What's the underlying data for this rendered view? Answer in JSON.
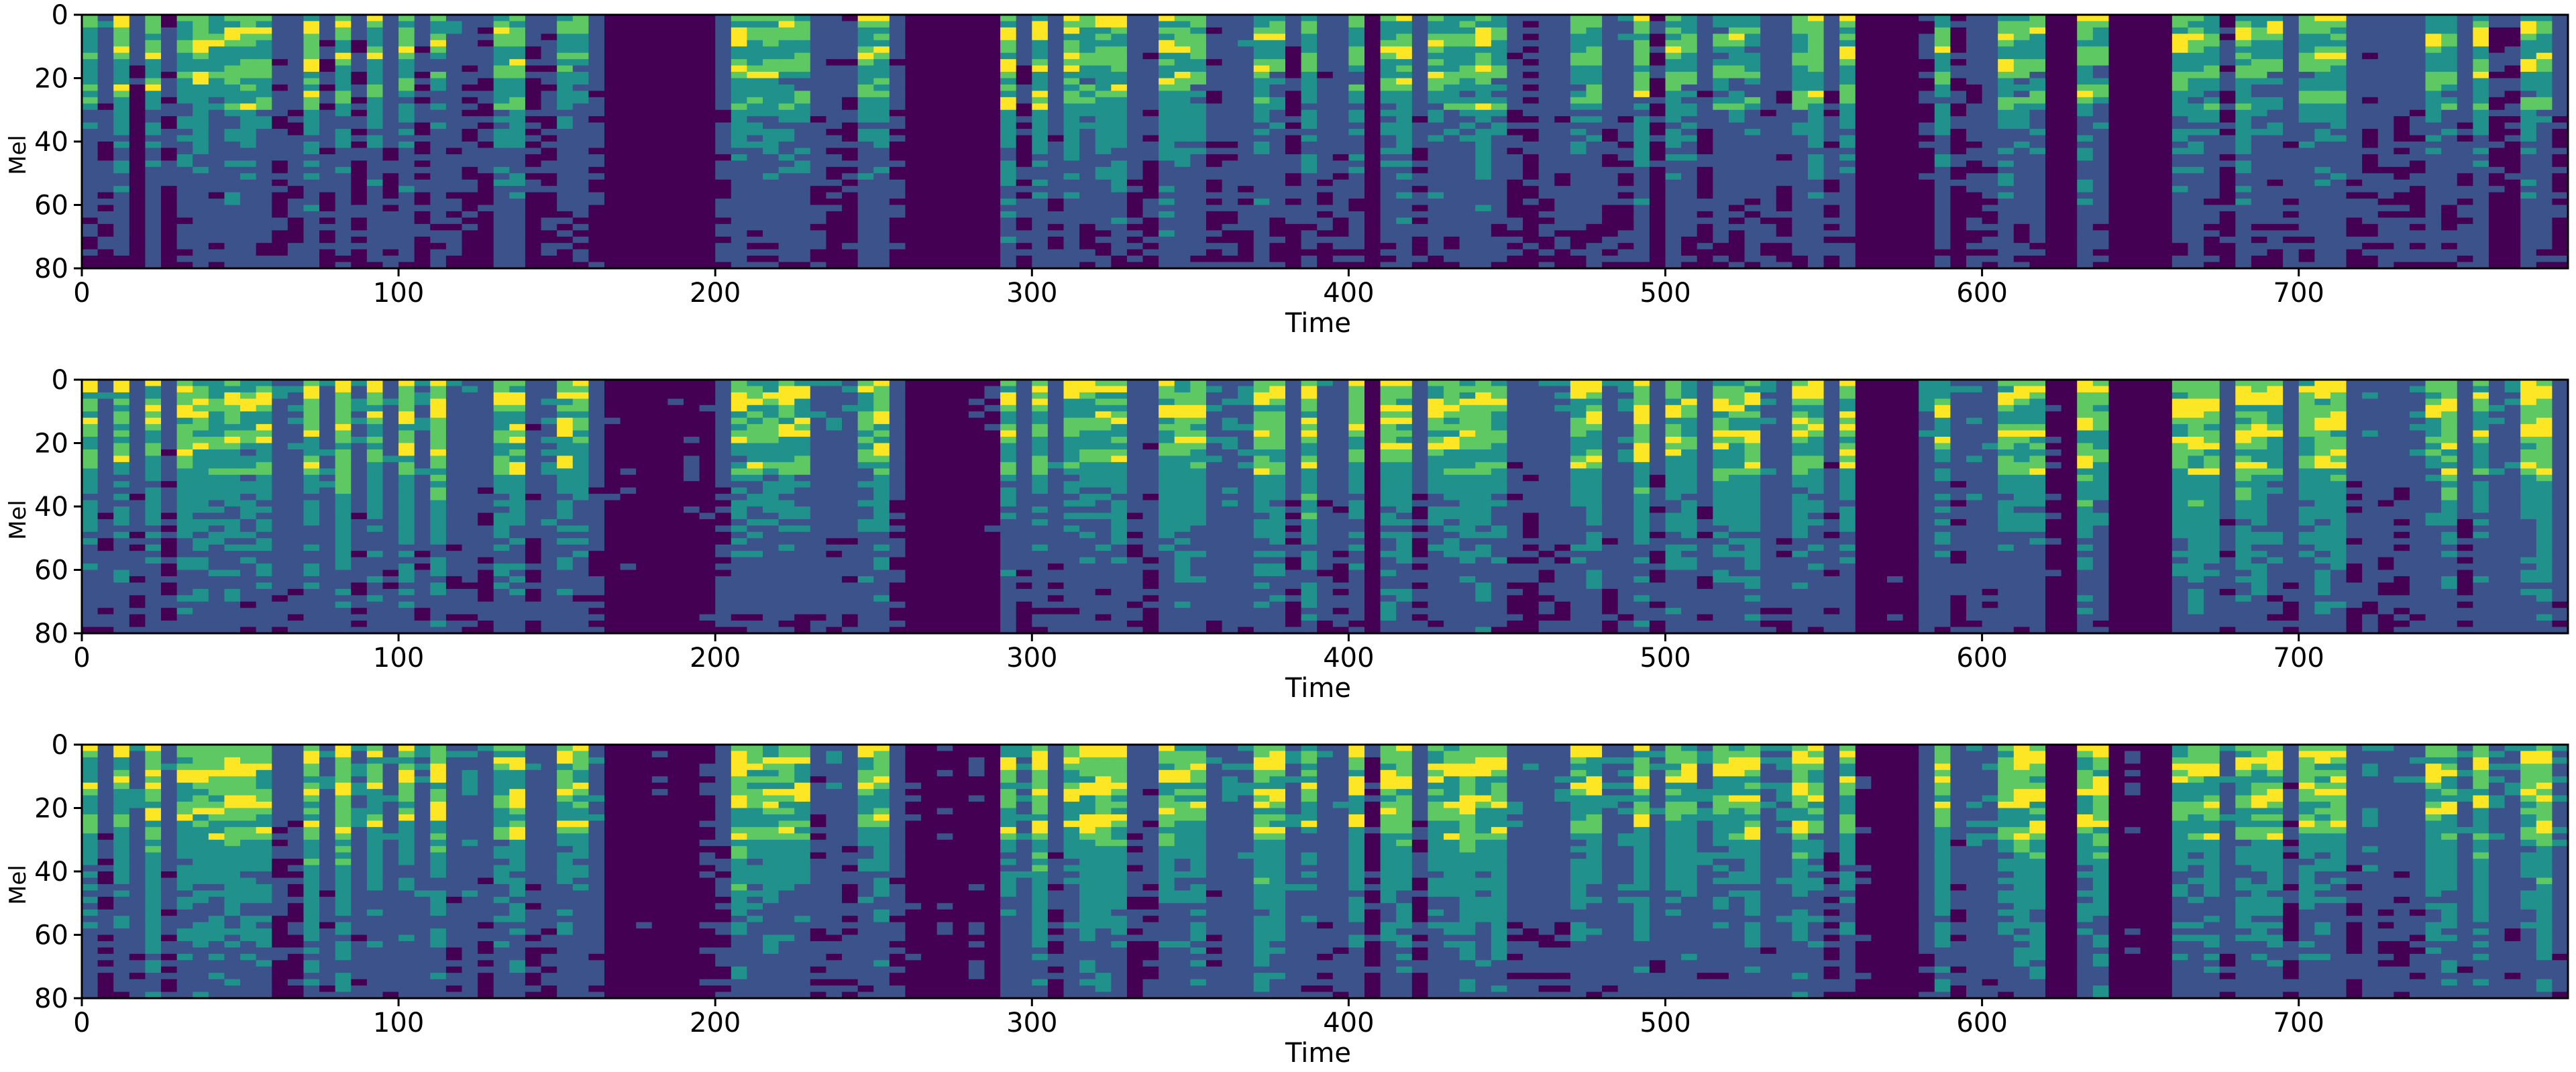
{
  "chart_data": [
    {
      "type": "heatmap",
      "xlabel": "Time",
      "ylabel": "Mel",
      "xlim": [
        0,
        785
      ],
      "ylim": [
        80,
        0
      ],
      "xticks": [
        0,
        100,
        200,
        300,
        400,
        500,
        600,
        700
      ],
      "yticks": [
        0,
        20,
        40,
        60,
        80
      ],
      "colormap": [
        "#440154",
        "#3b528b",
        "#21918c",
        "#5ec962",
        "#fde725"
      ],
      "grid": false,
      "seed": 11,
      "energy": 0.0
    },
    {
      "type": "heatmap",
      "xlabel": "Time",
      "ylabel": "Mel",
      "xlim": [
        0,
        785
      ],
      "ylim": [
        80,
        0
      ],
      "xticks": [
        0,
        100,
        200,
        300,
        400,
        500,
        600,
        700
      ],
      "yticks": [
        0,
        20,
        40,
        60,
        80
      ],
      "colormap": [
        "#440154",
        "#3b528b",
        "#21918c",
        "#5ec962",
        "#fde725"
      ],
      "grid": false,
      "seed": 23,
      "energy": 0.12
    },
    {
      "type": "heatmap",
      "xlabel": "Time",
      "ylabel": "Mel",
      "xlim": [
        0,
        785
      ],
      "ylim": [
        80,
        0
      ],
      "xticks": [
        0,
        100,
        200,
        300,
        400,
        500,
        600,
        700
      ],
      "yticks": [
        0,
        20,
        40,
        60,
        80
      ],
      "colormap": [
        "#440154",
        "#3b528b",
        "#21918c",
        "#5ec962",
        "#fde725"
      ],
      "grid": false,
      "seed": 37,
      "energy": 0.14
    }
  ]
}
